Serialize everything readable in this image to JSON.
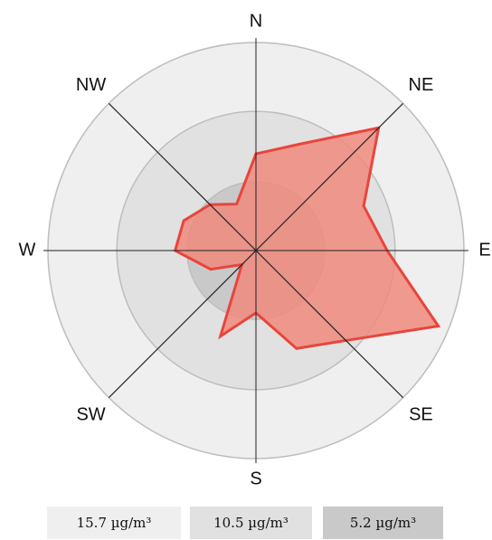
{
  "chart_data": {
    "type": "radar",
    "categories": [
      "N",
      null,
      "NE",
      null,
      "E",
      null,
      "SE",
      null,
      "S",
      null,
      "SW",
      null,
      "W",
      null,
      "NW",
      null
    ],
    "values": [
      7.3,
      8.7,
      13.1,
      8.8,
      9.9,
      14.9,
      9.6,
      8.0,
      4.7,
      7.0,
      1.5,
      3.7,
      6.1,
      5.9,
      4.9,
      3.8
    ],
    "color": "#e8453c",
    "fill": "#f08a7e",
    "rlim": [
      0,
      15.7
    ],
    "rticks": [
      {
        "value": 15.7,
        "label": "15.7 µg/m³"
      },
      {
        "value": 10.5,
        "label": "10.5 µg/m³"
      },
      {
        "value": 5.2,
        "label": "5.2 µg/m³"
      }
    ],
    "ring_colors": [
      "#efefef",
      "#e1e1e1",
      "#c9c9c9"
    ]
  }
}
